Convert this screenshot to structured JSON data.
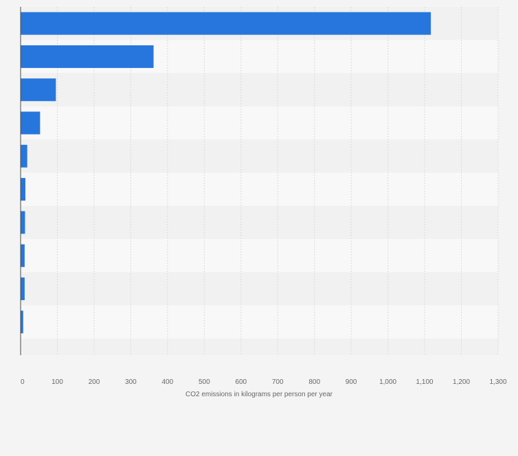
{
  "chart_data": {
    "type": "bar",
    "orientation": "horizontal",
    "title": "",
    "xlabel": "CO2 emissions in kilograms per person per year",
    "ylabel": "",
    "categories": [
      "",
      "",
      "",
      "",
      "",
      "",
      "",
      "",
      "",
      ""
    ],
    "values": [
      1117,
      362,
      96,
      53,
      18,
      13,
      12,
      11,
      11,
      7
    ],
    "xlim": [
      0,
      1300
    ],
    "xticks": [
      0,
      100,
      200,
      300,
      400,
      500,
      600,
      700,
      800,
      900,
      1000,
      1100,
      1200,
      1300
    ],
    "xtick_labels": [
      "0",
      "100",
      "200",
      "300",
      "400",
      "500",
      "600",
      "700",
      "800",
      "900",
      "1,000",
      "1,100",
      "1,200",
      "1,300"
    ],
    "grid": true,
    "legend": "none",
    "colors": {
      "bar": "#2776dd",
      "row_dark": "#f1f1f1",
      "row_light": "#f8f8f8",
      "grid": "#dadada",
      "axis": "#4a4a4a",
      "page": "#f4f4f4"
    }
  }
}
